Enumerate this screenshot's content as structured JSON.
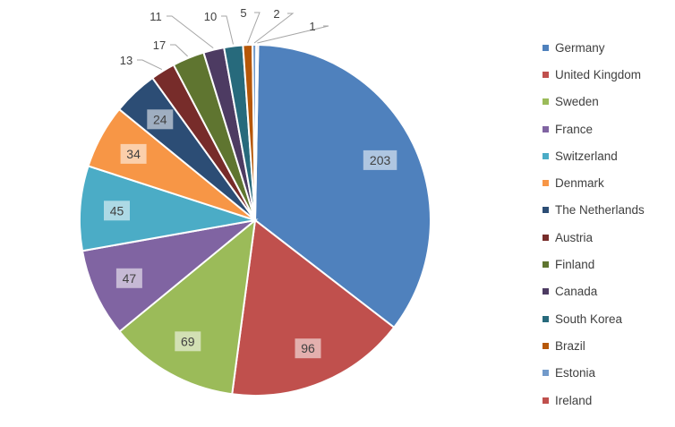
{
  "chart_data": {
    "type": "pie",
    "title": "",
    "legend_position": "right",
    "slices": [
      {
        "label": "Germany",
        "value": 203,
        "color": "#4f81bd"
      },
      {
        "label": "United Kingdom",
        "value": 96,
        "color": "#c0504d"
      },
      {
        "label": "Sweden",
        "value": 69,
        "color": "#9bbb59"
      },
      {
        "label": "France",
        "value": 47,
        "color": "#8064a2"
      },
      {
        "label": "Switzerland",
        "value": 45,
        "color": "#4bacc6"
      },
      {
        "label": "Denmark",
        "value": 34,
        "color": "#f79646"
      },
      {
        "label": "The Netherlands",
        "value": 24,
        "color": "#2c4d75"
      },
      {
        "label": "Austria",
        "value": 13,
        "color": "#772c2a"
      },
      {
        "label": "Finland",
        "value": 17,
        "color": "#5f7530"
      },
      {
        "label": "Canada",
        "value": 11,
        "color": "#4d3b62"
      },
      {
        "label": "South Korea",
        "value": 10,
        "color": "#276a7c"
      },
      {
        "label": "Brazil",
        "value": 5,
        "color": "#b65708"
      },
      {
        "label": "Estonia",
        "value": 2,
        "color": "#729aca"
      },
      {
        "label": "Ireland",
        "value": 1,
        "color": "#c0504d"
      }
    ]
  }
}
